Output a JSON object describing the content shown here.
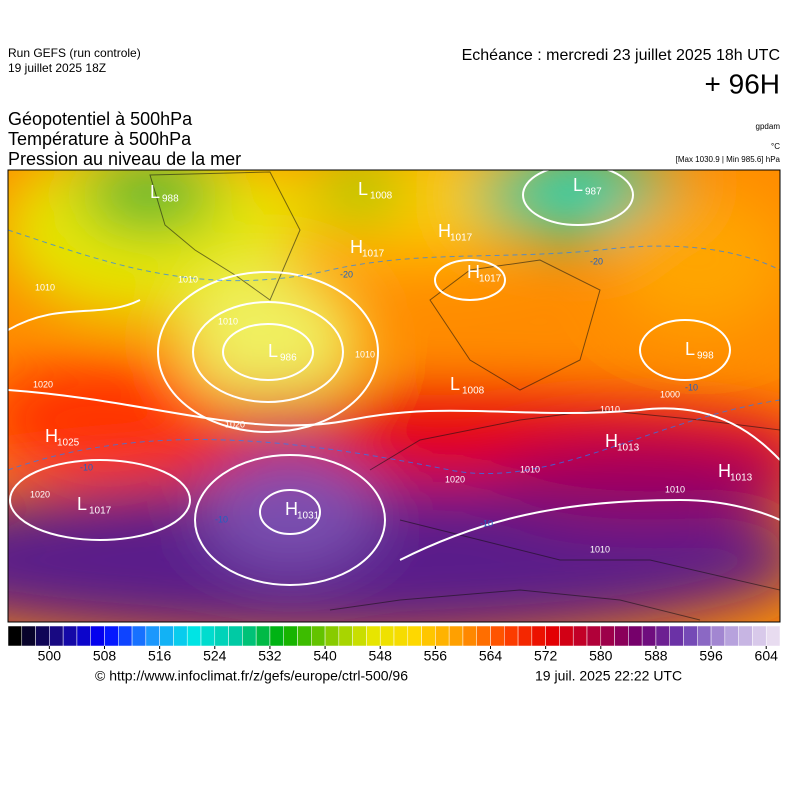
{
  "header": {
    "run": "Run GEFS (run controle)",
    "run_date": "19 juillet 2025 18Z",
    "valid": "Echéance : mercredi 23 juillet 2025 18h UTC",
    "lead": "+ 96H"
  },
  "fields": [
    "Géopotentiel à 500hPa",
    "Température à 500hPa",
    "Pression au niveau de la mer"
  ],
  "units": [
    "gpdam",
    "°C",
    "[Max 1030.9 | Min 985.6] hPa"
  ],
  "centers": [
    {
      "kind": "L",
      "value": 988
    },
    {
      "kind": "L",
      "value": 1008
    },
    {
      "kind": "H",
      "value": 1017
    },
    {
      "kind": "H",
      "value": 1017
    },
    {
      "kind": "L",
      "value": 987
    },
    {
      "kind": "H",
      "value": 1017
    },
    {
      "kind": "L",
      "value": 986
    },
    {
      "kind": "L",
      "value": 998
    },
    {
      "kind": "L",
      "value": 1008
    },
    {
      "kind": "H",
      "value": 1025
    },
    {
      "kind": "H",
      "value": 1013
    },
    {
      "kind": "H",
      "value": 1013
    },
    {
      "kind": "L",
      "value": 1017
    },
    {
      "kind": "H",
      "value": 1031
    }
  ],
  "contour_labels": [
    1010,
    1010,
    1010,
    1020,
    1020,
    1020,
    1000,
    1010,
    1010,
    1020,
    1010,
    1010,
    1010,
    -20,
    -20,
    -10,
    -10,
    -10,
    -10
  ],
  "colorbar": {
    "lim": [
      494,
      606
    ],
    "step": 2,
    "ticks": [
      500,
      508,
      516,
      524,
      532,
      540,
      548,
      556,
      564,
      572,
      580,
      588,
      596,
      604
    ],
    "colors": [
      "#000000",
      "#1a0a8c",
      "#0000ff",
      "#1e90ff",
      "#00e5e5",
      "#00c8a0",
      "#00b000",
      "#7cc800",
      "#e6e600",
      "#ffd700",
      "#ff9900",
      "#ff4500",
      "#e60000",
      "#b0003a",
      "#700070",
      "#6a3cb0",
      "#b39ddb",
      "#e8dcf0"
    ]
  },
  "footer": {
    "source": "© http://www.infoclimat.fr/z/gefs/europe/ctrl-500/96",
    "generated": "19 juil. 2025 22:22 UTC"
  }
}
